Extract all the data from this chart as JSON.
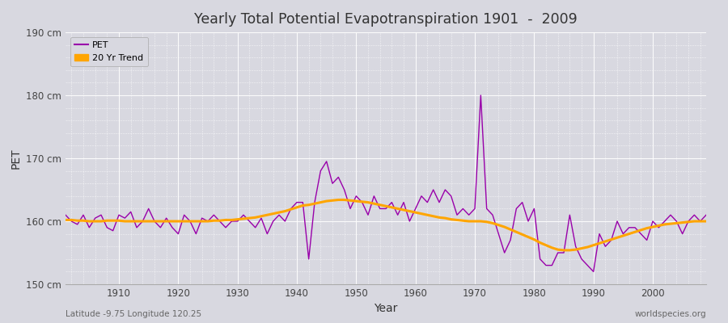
{
  "title": "Yearly Total Potential Evapotranspiration 1901  -  2009",
  "xlabel": "Year",
  "ylabel": "PET",
  "subtitle_left": "Latitude -9.75 Longitude 120.25",
  "subtitle_right": "worldspecies.org",
  "ylim": [
    150,
    190
  ],
  "xlim": [
    1901,
    2009
  ],
  "yticks": [
    150,
    160,
    170,
    180,
    190
  ],
  "ytick_labels": [
    "150 cm",
    "160 cm",
    "170 cm",
    "180 cm",
    "190 cm"
  ],
  "xticks": [
    1910,
    1920,
    1930,
    1940,
    1950,
    1960,
    1970,
    1980,
    1990,
    2000
  ],
  "pet_color": "#9900aa",
  "trend_color": "#FFA500",
  "fig_bg_color": "#d8d8e0",
  "plot_bg_color": "#d8d8e0",
  "legend_bg": "#d8d8e0",
  "grid_color": "#ffffff",
  "legend_labels": [
    "PET",
    "20 Yr Trend"
  ],
  "years": [
    1901,
    1902,
    1903,
    1904,
    1905,
    1906,
    1907,
    1908,
    1909,
    1910,
    1911,
    1912,
    1913,
    1914,
    1915,
    1916,
    1917,
    1918,
    1919,
    1920,
    1921,
    1922,
    1923,
    1924,
    1925,
    1926,
    1927,
    1928,
    1929,
    1930,
    1931,
    1932,
    1933,
    1934,
    1935,
    1936,
    1937,
    1938,
    1939,
    1940,
    1941,
    1942,
    1943,
    1944,
    1945,
    1946,
    1947,
    1948,
    1949,
    1950,
    1951,
    1952,
    1953,
    1954,
    1955,
    1956,
    1957,
    1958,
    1959,
    1960,
    1961,
    1962,
    1963,
    1964,
    1965,
    1966,
    1967,
    1968,
    1969,
    1970,
    1971,
    1972,
    1973,
    1974,
    1975,
    1976,
    1977,
    1978,
    1979,
    1980,
    1981,
    1982,
    1983,
    1984,
    1985,
    1986,
    1987,
    1988,
    1989,
    1990,
    1991,
    1992,
    1993,
    1994,
    1995,
    1996,
    1997,
    1998,
    1999,
    2000,
    2001,
    2002,
    2003,
    2004,
    2005,
    2006,
    2007,
    2008,
    2009
  ],
  "pet_values": [
    161.0,
    160.0,
    159.5,
    161.0,
    159.0,
    160.5,
    161.0,
    159.0,
    158.5,
    161.0,
    160.5,
    161.5,
    159.0,
    160.0,
    162.0,
    160.0,
    159.0,
    160.5,
    159.0,
    158.0,
    161.0,
    160.0,
    158.0,
    160.5,
    160.0,
    161.0,
    160.0,
    159.0,
    160.0,
    160.0,
    161.0,
    160.0,
    159.0,
    160.5,
    158.0,
    160.0,
    161.0,
    160.0,
    162.0,
    163.0,
    163.0,
    154.0,
    163.0,
    168.0,
    169.5,
    166.0,
    167.0,
    165.0,
    162.0,
    164.0,
    163.0,
    161.0,
    164.0,
    162.0,
    162.0,
    163.0,
    161.0,
    163.0,
    160.0,
    162.0,
    164.0,
    163.0,
    165.0,
    163.0,
    165.0,
    164.0,
    161.0,
    162.0,
    161.0,
    162.0,
    180.0,
    162.0,
    161.0,
    158.0,
    155.0,
    157.0,
    162.0,
    163.0,
    160.0,
    162.0,
    154.0,
    153.0,
    153.0,
    155.0,
    155.0,
    161.0,
    156.0,
    154.0,
    153.0,
    152.0,
    158.0,
    156.0,
    157.0,
    160.0,
    158.0,
    159.0,
    159.0,
    158.0,
    157.0,
    160.0,
    159.0,
    160.0,
    161.0,
    160.0,
    158.0,
    160.0,
    161.0,
    160.0,
    161.0
  ],
  "trend_values": [
    160.2,
    160.2,
    160.1,
    160.1,
    160.0,
    160.0,
    160.0,
    160.1,
    160.1,
    160.1,
    160.0,
    160.0,
    160.0,
    160.0,
    160.0,
    160.0,
    160.0,
    160.0,
    160.0,
    160.0,
    160.0,
    160.0,
    160.0,
    160.0,
    160.0,
    160.1,
    160.1,
    160.2,
    160.2,
    160.3,
    160.4,
    160.5,
    160.6,
    160.8,
    161.0,
    161.2,
    161.4,
    161.6,
    161.9,
    162.2,
    162.5,
    162.6,
    162.8,
    163.0,
    163.2,
    163.3,
    163.4,
    163.4,
    163.3,
    163.2,
    163.1,
    163.0,
    162.8,
    162.6,
    162.4,
    162.2,
    162.0,
    161.8,
    161.6,
    161.4,
    161.2,
    161.0,
    160.8,
    160.6,
    160.5,
    160.3,
    160.2,
    160.1,
    160.0,
    160.0,
    160.0,
    159.9,
    159.7,
    159.4,
    159.1,
    158.7,
    158.3,
    157.9,
    157.5,
    157.1,
    156.6,
    156.2,
    155.8,
    155.5,
    155.4,
    155.4,
    155.5,
    155.7,
    155.9,
    156.2,
    156.5,
    156.8,
    157.1,
    157.4,
    157.7,
    158.0,
    158.3,
    158.6,
    158.9,
    159.1,
    159.3,
    159.5,
    159.6,
    159.7,
    159.8,
    159.9,
    160.0,
    160.0,
    160.0
  ]
}
